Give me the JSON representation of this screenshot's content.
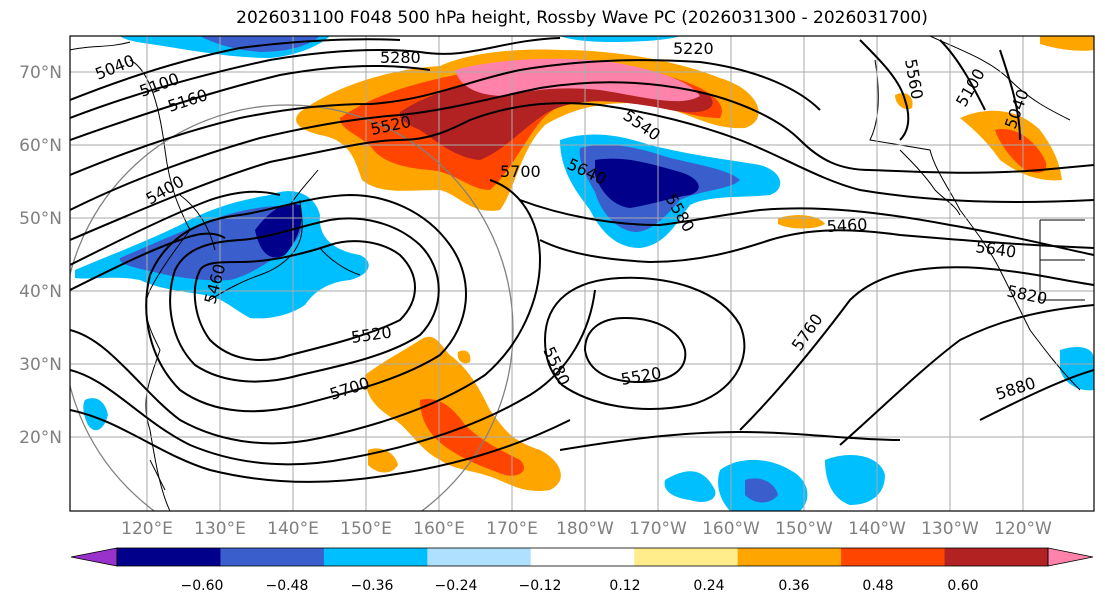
{
  "title": "2026031100 F048 500 hPa height, Rossby Wave PC (2026031300 - 2026031700)",
  "latitude_labels": [
    "70°N",
    "60°N",
    "50°N",
    "40°N",
    "30°N",
    "20°N"
  ],
  "longitude_labels": [
    "120°E",
    "130°E",
    "140°E",
    "150°E",
    "160°E",
    "170°E",
    "180°W",
    "170°W",
    "160°W",
    "150°W",
    "140°W",
    "130°W",
    "120°W"
  ],
  "contour_labels": [
    "5040",
    "5100",
    "5160",
    "5280",
    "5220",
    "5560",
    "5100",
    "5040",
    "5520",
    "5540",
    "5700",
    "5640",
    "5580",
    "5400",
    "5460",
    "5460",
    "5640",
    "5820",
    "5520",
    "5580",
    "5520",
    "5760",
    "5700",
    "5880"
  ],
  "colorbar": {
    "tick_labels": [
      "−0.60",
      "−0.48",
      "−0.36",
      "−0.24",
      "−0.12",
      "0.12",
      "0.24",
      "0.36",
      "0.48",
      "0.60"
    ],
    "colors": [
      "#9932CC",
      "#00008B",
      "#3A5FCD",
      "#00BFFF",
      "#B0E0FF",
      "#FFFFFF",
      "#FFEC8B",
      "#FFA500",
      "#FF4500",
      "#B22222",
      "#FF82AB"
    ],
    "extend": "both"
  }
}
